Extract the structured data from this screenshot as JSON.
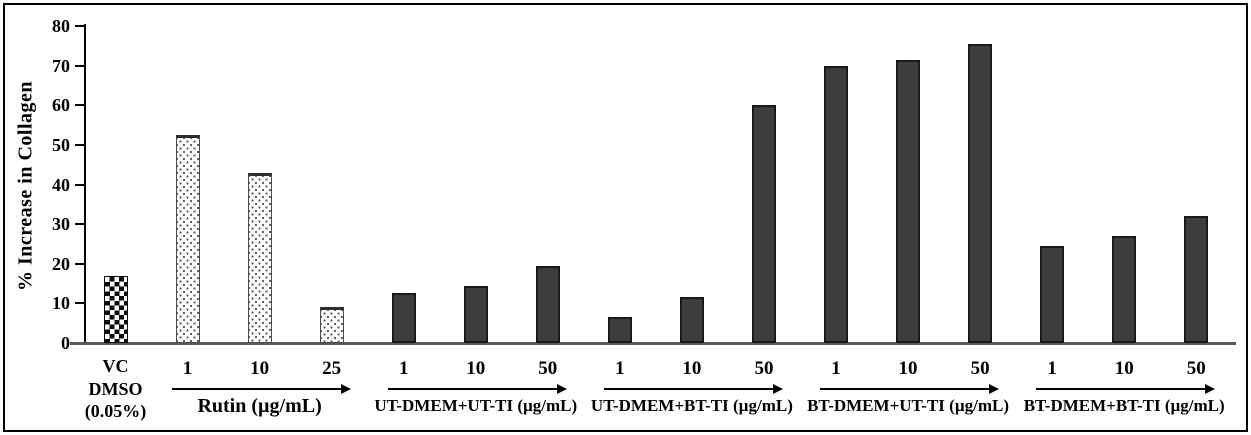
{
  "chart_data": {
    "type": "bar",
    "title": "",
    "xlabel": "",
    "ylabel": "% Increase in Collagen",
    "ylim": [
      0,
      80
    ],
    "ytick_interval": 10,
    "ytick_labels": [
      "0",
      "10",
      "20",
      "30",
      "40",
      "50",
      "60",
      "70",
      "80"
    ],
    "grid": false,
    "legend": "none",
    "groups": [
      {
        "name": "vehicle-control",
        "label_lines": [
          "VC",
          "DMSO",
          "(0.05%)"
        ],
        "arrow": false,
        "bar_style": "checker",
        "bars": [
          {
            "tick": "",
            "value": 17
          }
        ]
      },
      {
        "name": "rutin",
        "label": "Rutin (µg/mL)",
        "arrow": true,
        "bar_style": "dots",
        "bars": [
          {
            "tick": "1",
            "value": 52.5
          },
          {
            "tick": "10",
            "value": 43
          },
          {
            "tick": "25",
            "value": 9
          }
        ]
      },
      {
        "name": "ut-dmem-ut-ti",
        "label": "UT-DMEM+UT-TI (µg/mL)",
        "arrow": true,
        "bar_style": "solid",
        "bars": [
          {
            "tick": "1",
            "value": 12.5
          },
          {
            "tick": "10",
            "value": 14.5
          },
          {
            "tick": "50",
            "value": 19.5
          }
        ]
      },
      {
        "name": "ut-dmem-bt-ti",
        "label": "UT-DMEM+BT-TI (µg/mL)",
        "arrow": true,
        "bar_style": "solid",
        "bars": [
          {
            "tick": "1",
            "value": 6.5
          },
          {
            "tick": "10",
            "value": 11.5
          },
          {
            "tick": "50",
            "value": 60
          }
        ]
      },
      {
        "name": "bt-dmem-ut-ti",
        "label": "BT-DMEM+UT-TI (µg/mL)",
        "arrow": true,
        "bar_style": "solid",
        "bars": [
          {
            "tick": "1",
            "value": 70
          },
          {
            "tick": "10",
            "value": 71.5
          },
          {
            "tick": "50",
            "value": 75.5
          }
        ]
      },
      {
        "name": "bt-dmem-bt-ti",
        "label": "BT-DMEM+BT-TI (µg/mL)",
        "arrow": true,
        "bar_style": "solid",
        "bars": [
          {
            "tick": "1",
            "value": 24.5
          },
          {
            "tick": "10",
            "value": 27
          },
          {
            "tick": "50",
            "value": 32
          }
        ]
      }
    ],
    "colors": {
      "solid_bar": "#3d3d3d",
      "bar_border": "#1a1a1a",
      "axis": "#000000",
      "baseline": "#595959",
      "text": "#000000",
      "frame_border": "#000000",
      "background": "#ffffff"
    }
  }
}
